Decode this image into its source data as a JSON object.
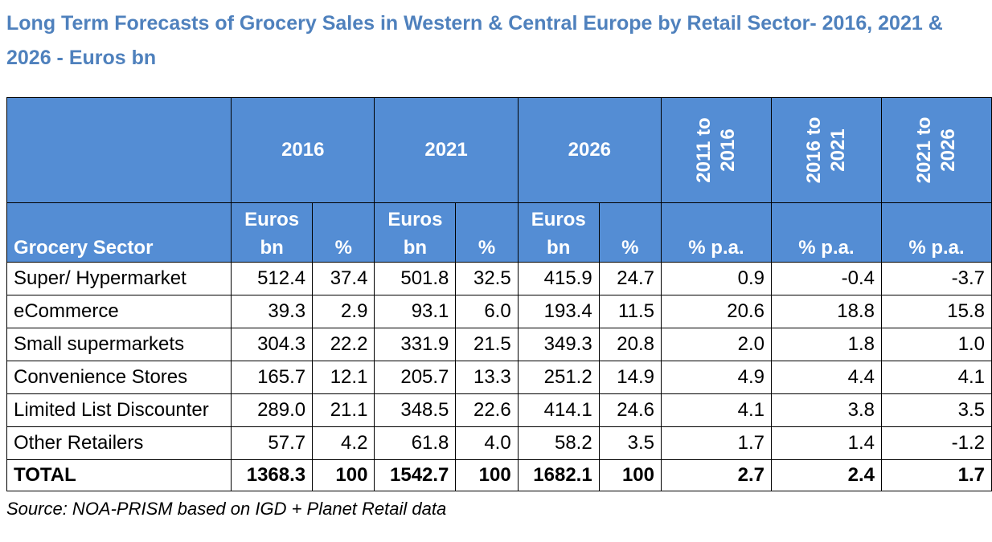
{
  "title": "Long Term Forecasts of Grocery Sales in Western & Central Europe by Retail Sector- 2016, 2021 & 2026 - Euros bn",
  "source": "Source: NOA-PRISM based on IGD + Planet Retail data",
  "chart_data": {
    "type": "table",
    "title": "Long Term Forecasts of Grocery Sales in Western & Central Europe by Retail Sector- 2016, 2021 & 2026 - Euros bn",
    "year_headers": [
      "2016",
      "2021",
      "2026"
    ],
    "period_headers": [
      "2011 to 2016",
      "2016 to 2021",
      "2021 to 2026"
    ],
    "row_label_header": "Grocery Sector",
    "value_header": "Euros bn",
    "share_header": "%",
    "growth_header": "% p.a.",
    "rows": [
      {
        "label": "Super/ Hypermarket",
        "cells": [
          "512.4",
          "37.4",
          "501.8",
          "32.5",
          "415.9",
          "24.7",
          "0.9",
          "-0.4",
          "-3.7"
        ]
      },
      {
        "label": "eCommerce",
        "cells": [
          "39.3",
          "2.9",
          "93.1",
          "6.0",
          "193.4",
          "11.5",
          "20.6",
          "18.8",
          "15.8"
        ]
      },
      {
        "label": "Small supermarkets",
        "cells": [
          "304.3",
          "22.2",
          "331.9",
          "21.5",
          "349.3",
          "20.8",
          "2.0",
          "1.8",
          "1.0"
        ]
      },
      {
        "label": "Convenience Stores",
        "cells": [
          "165.7",
          "12.1",
          "205.7",
          "13.3",
          "251.2",
          "14.9",
          "4.9",
          "4.4",
          "4.1"
        ]
      },
      {
        "label": "Limited List Discounter",
        "cells": [
          "289.0",
          "21.1",
          "348.5",
          "22.6",
          "414.1",
          "24.6",
          "4.1",
          "3.8",
          "3.5"
        ]
      },
      {
        "label": "Other Retailers",
        "cells": [
          "57.7",
          "4.2",
          "61.8",
          "4.0",
          "58.2",
          "3.5",
          "1.7",
          "1.4",
          "-1.2"
        ]
      }
    ],
    "total": {
      "label": "TOTAL",
      "cells": [
        "1368.3",
        "100",
        "1542.7",
        "100",
        "1682.1",
        "100",
        "2.7",
        "2.4",
        "1.7"
      ]
    },
    "colors": {
      "header_bg": "#548dd4",
      "header_text": "#ffffff",
      "title_text": "#4f81bd"
    }
  }
}
